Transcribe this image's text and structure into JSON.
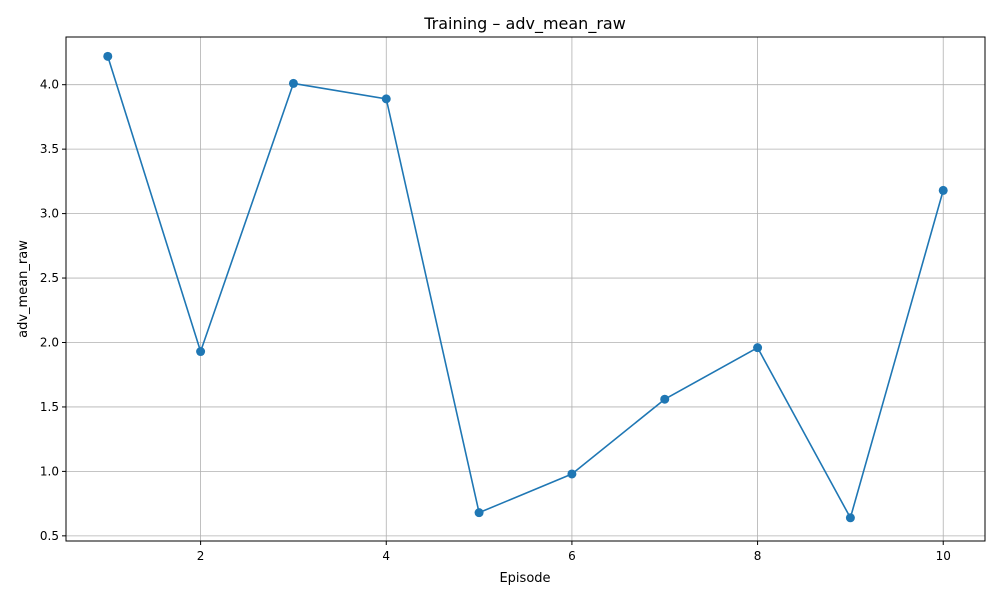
{
  "chart_data": {
    "type": "line",
    "title": "Training – adv_mean_raw",
    "xlabel": "Episode",
    "ylabel": "adv_mean_raw",
    "x": [
      1,
      2,
      3,
      4,
      5,
      6,
      7,
      8,
      9,
      10
    ],
    "series": [
      {
        "values": [
          4.22,
          1.93,
          4.01,
          3.89,
          0.68,
          0.98,
          1.56,
          1.96,
          0.64,
          3.18
        ],
        "color": "#1f77b4",
        "marker": "circle"
      }
    ],
    "xlim": [
      0.55,
      10.45
    ],
    "ylim": [
      0.46,
      4.37
    ],
    "xticks": [
      2,
      4,
      6,
      8,
      10
    ],
    "xtick_labels": [
      "2",
      "4",
      "6",
      "8",
      "10"
    ],
    "yticks": [
      0.5,
      1.0,
      1.5,
      2.0,
      2.5,
      3.0,
      3.5,
      4.0
    ],
    "ytick_labels": [
      "0.5",
      "1.0",
      "1.5",
      "2.0",
      "2.5",
      "3.0",
      "3.5",
      "4.0"
    ],
    "grid": true,
    "legend": false
  }
}
